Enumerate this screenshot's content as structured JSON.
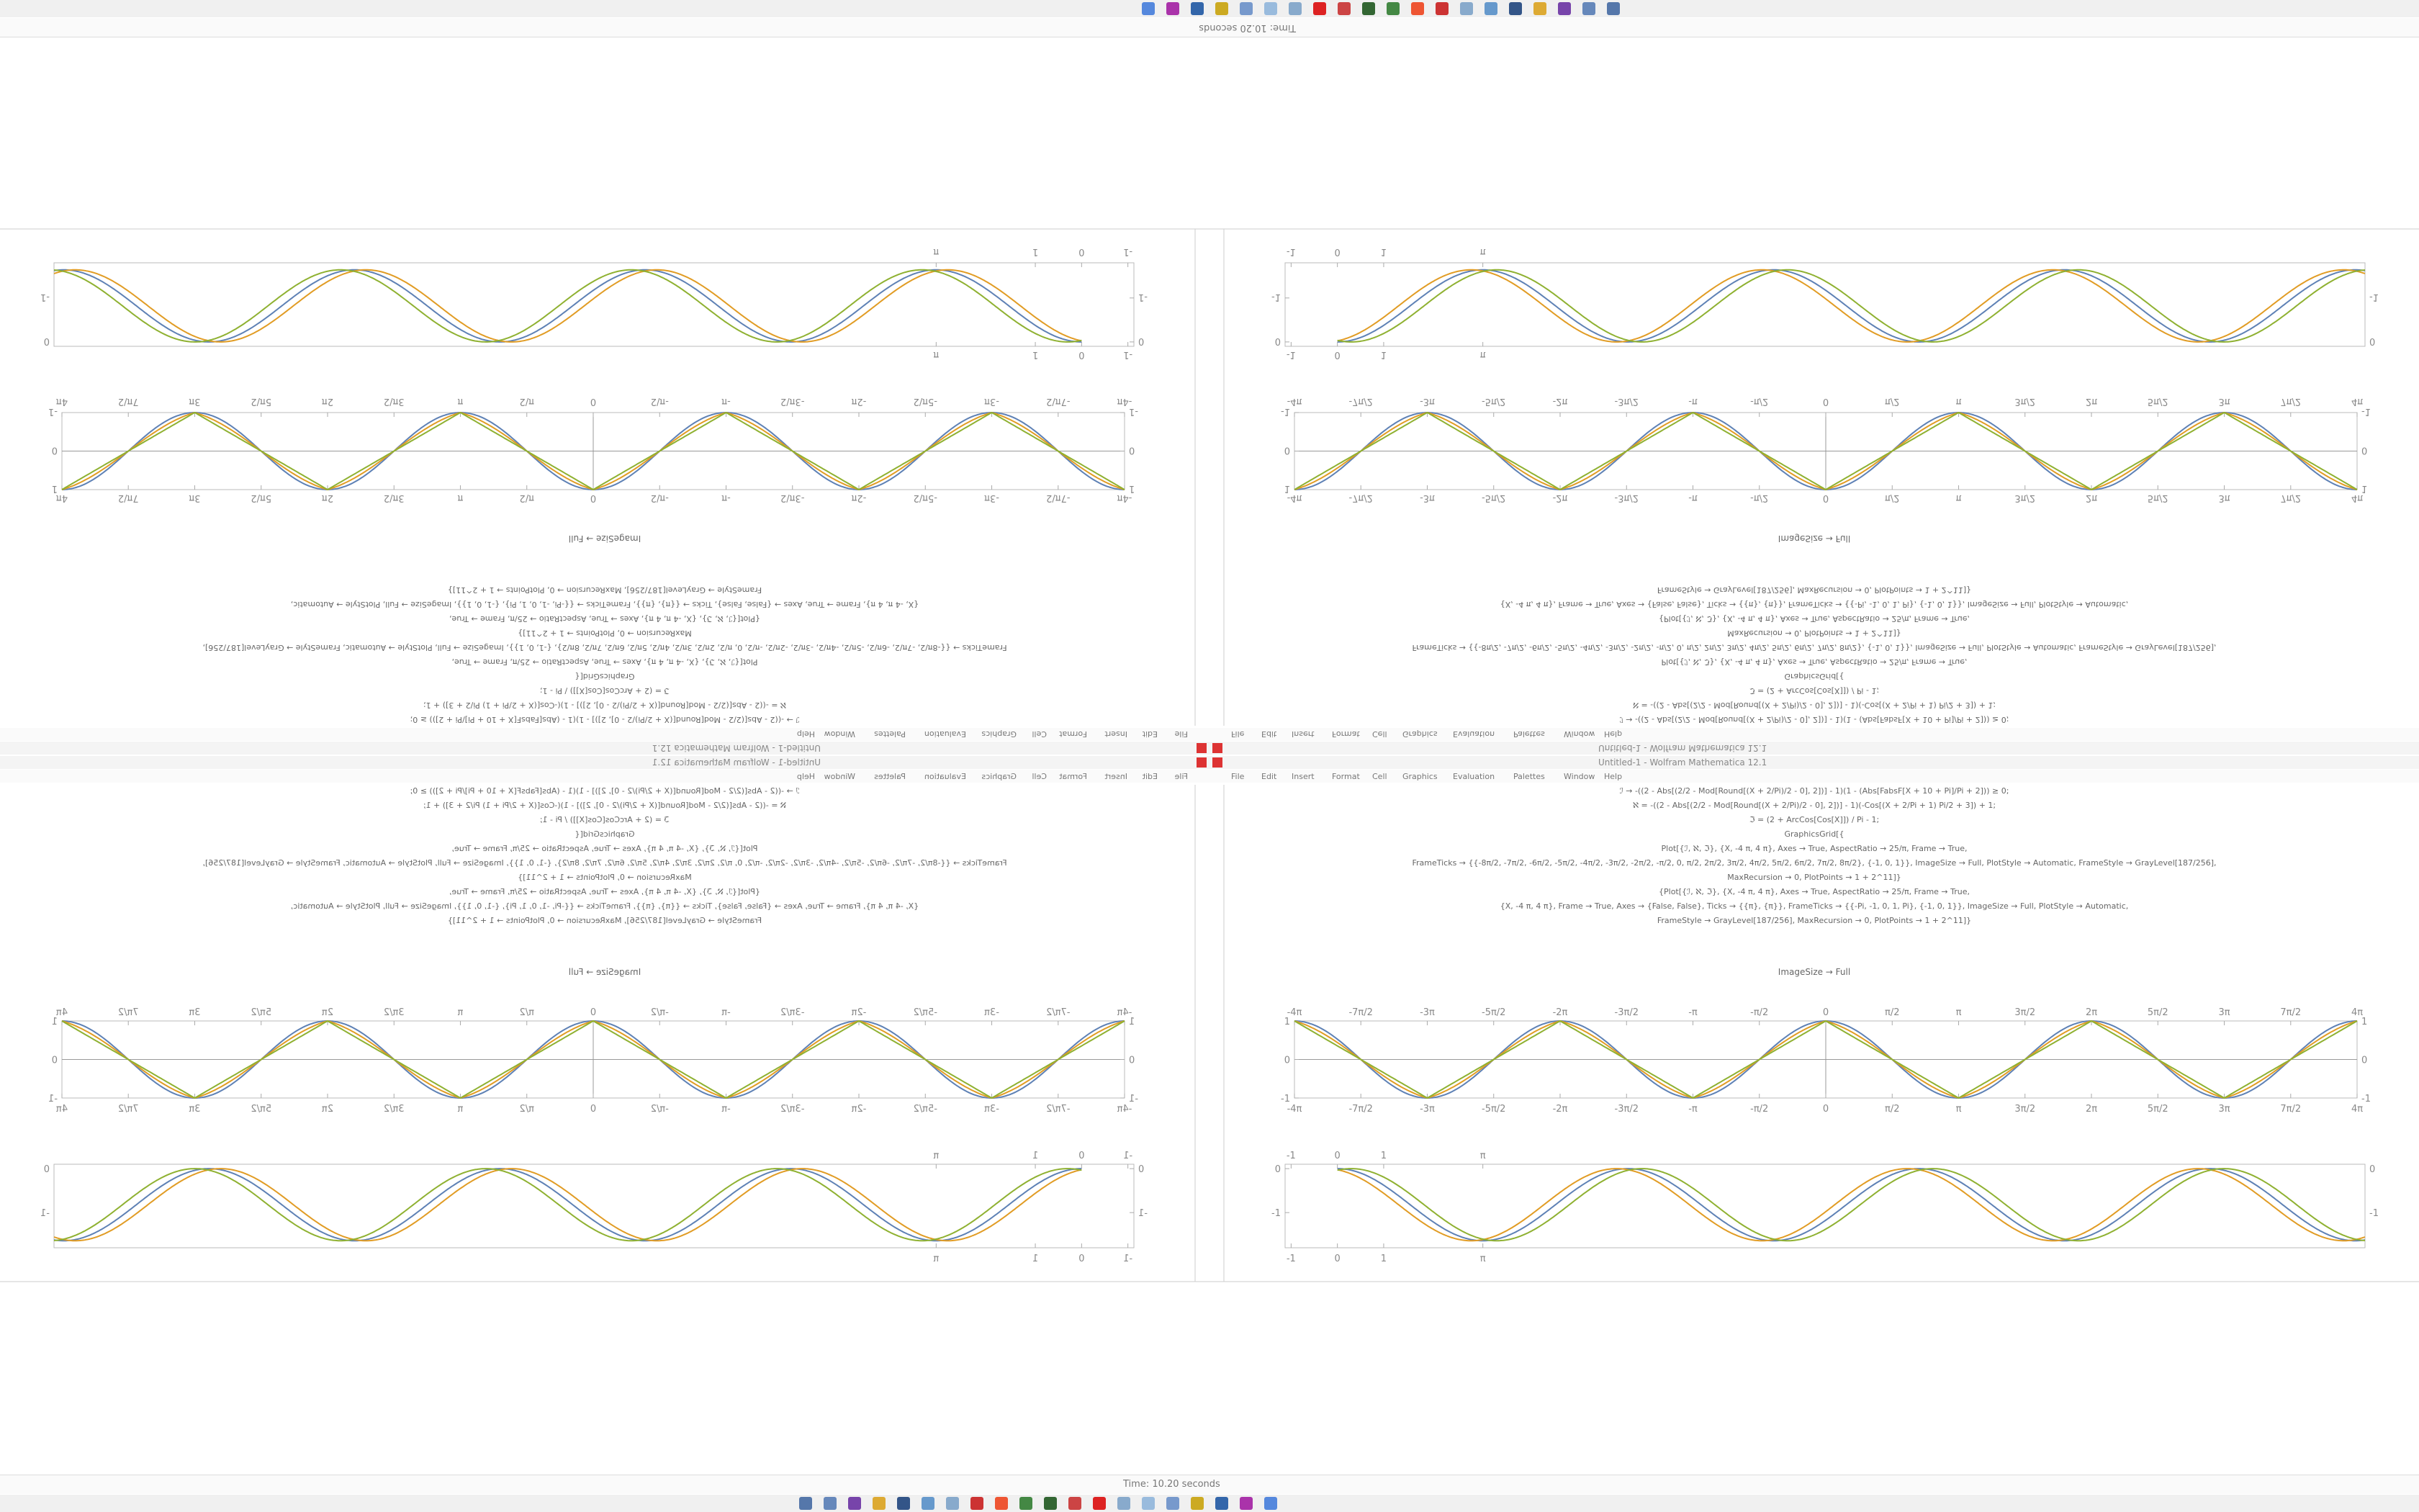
{
  "status": "Time: 10.20 seconds",
  "window_title": "Untitled-1 - Wolfram Mathematica 12.1",
  "menu": [
    "File",
    "Edit",
    "Insert",
    "Format",
    "Cell",
    "Graphics",
    "Evaluation",
    "Palettes",
    "Window",
    "Help"
  ],
  "code": [
    "ℐ → -((2 - Abs[(2/2 - Mod[Round[(X + 2/Pi)/2 - 0], 2])] - 1)(1 - (Abs[FabsF[X + 10 + Pi]/Pi + 2])) ≥ 0;",
    "ℵ = -((2 - Abs[(2/2 - Mod[Round[(X + 2/Pi)/2 - 0], 2])] - 1)(-Cos[(X + 2/Pi + 1) Pi/2 + 3]) + 1;",
    "ℑ = (2 + ArcCos[Cos[X]]) / Pi - 1;",
    "GraphicsGrid[{",
    "Plot[{ℐ, ℵ, ℑ}, {X, -4 π, 4 π}, Axes → True, AspectRatio → 25/π, Frame → True,",
    "FrameTicks → {{-8π/2, -7π/2, -6π/2, -5π/2, -4π/2, -3π/2, -2π/2, -π/2, 0, π/2, 2π/2, 3π/2, 4π/2, 5π/2, 6π/2, 7π/2, 8π/2}, {-1, 0, 1}}, ImageSize → Full, PlotStyle → Automatic, FrameStyle → GrayLevel[187/256],",
    "MaxRecursion → 0, PlotPoints → 1 + 2^11]}",
    "{Plot[{ℐ, ℵ, ℑ}, {X, -4 π, 4 π}, Axes → True, AspectRatio → 25/π, Frame → True,",
    "{X, -4 π, 4 π}, Frame → True, Axes → {False, False}, Ticks → {{π}, {π}}, FrameTicks → {{-Pi, -1, 0, 1, Pi}, {-1, 0, 1}}, ImageSize → Full, PlotStyle → Automatic,",
    "FrameStyle → GrayLevel[187/256], MaxRecursion → 0, PlotPoints → 1 + 2^11]}"
  ],
  "output_label": "ImageSize → Full",
  "plot1": {
    "xlim": [
      -12.566,
      12.566
    ],
    "ylim": [
      -1,
      1
    ],
    "xticks": [
      {
        "value": -12.566,
        "label": "-4π"
      },
      {
        "value": -10.996,
        "label": "-7π/2"
      },
      {
        "value": -9.425,
        "label": "-3π"
      },
      {
        "value": -7.854,
        "label": "-5π/2"
      },
      {
        "value": -6.283,
        "label": "-2π"
      },
      {
        "value": -4.712,
        "label": "-3π/2"
      },
      {
        "value": -3.142,
        "label": "-π"
      },
      {
        "value": -1.571,
        "label": "-π/2"
      },
      0,
      {
        "value": 1.571,
        "label": "π/2"
      },
      {
        "value": 3.142,
        "label": "π"
      },
      {
        "value": 4.712,
        "label": "3π/2"
      },
      {
        "value": 6.283,
        "label": "2π"
      },
      {
        "value": 7.854,
        "label": "5π/2"
      },
      {
        "value": 9.425,
        "label": "3π"
      },
      {
        "value": 10.996,
        "label": "7π/2"
      },
      {
        "value": 12.566,
        "label": "4π"
      }
    ],
    "yticks": [
      -1,
      0,
      1
    ]
  },
  "plot2": {
    "xlim": [
      -1.13,
      22.2
    ],
    "ylim": [
      -1.8,
      0.1
    ],
    "xticks": [
      -1,
      0,
      1,
      {
        "value": 3.142,
        "label": "π"
      }
    ],
    "yticks": [
      -1,
      0
    ]
  }
}
